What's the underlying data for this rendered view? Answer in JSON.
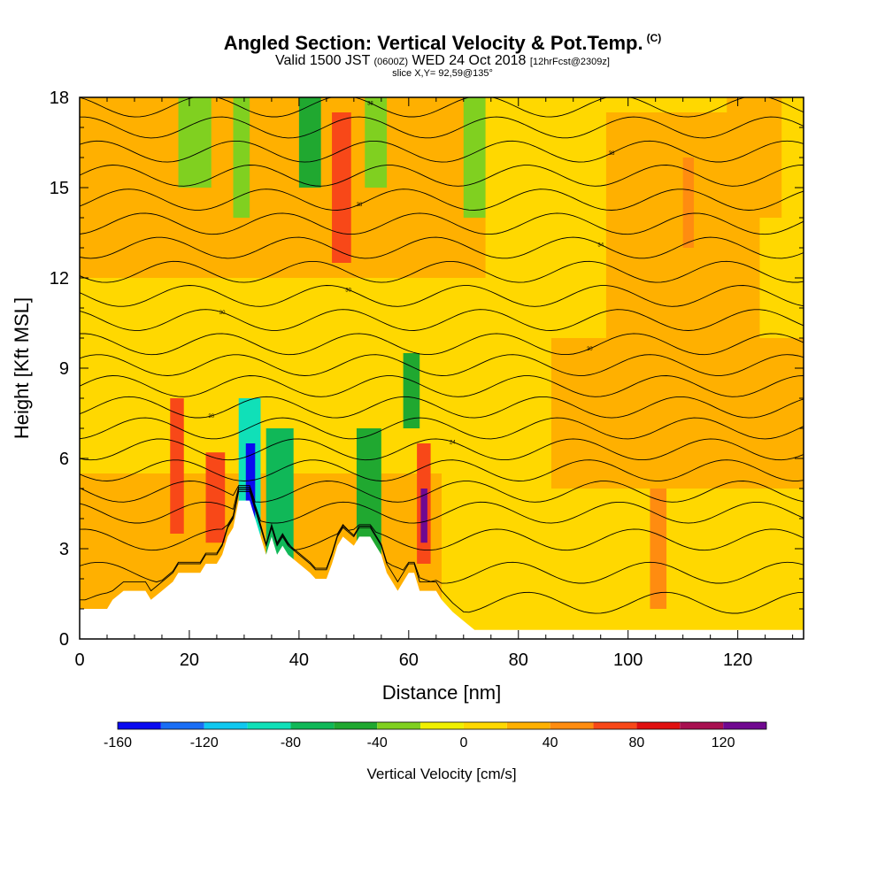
{
  "titles": {
    "main": "Angled Section: Vertical Velocity & Pot.Temp.",
    "main_unit": "(C)",
    "valid_prefix": "Valid 1500 JST",
    "valid_z": "(0600Z)",
    "valid_date": "WED 24 Oct 2018",
    "valid_fcst": "[12hrFcst@2309z]",
    "slice": "slice X,Y= 92,59@135°"
  },
  "chart_data": {
    "type": "heatmap",
    "title": "Angled Section: Vertical Velocity & Pot.Temp. (C)",
    "xlabel": "Distance [nm]",
    "ylabel": "Height [Kft MSL]",
    "xlim": [
      0,
      132
    ],
    "ylim": [
      0,
      18
    ],
    "x_ticks": [
      0,
      20,
      40,
      60,
      80,
      100,
      120
    ],
    "y_ticks": [
      0,
      3,
      6,
      9,
      12,
      15,
      18
    ],
    "colorbar": {
      "title": "Vertical Velocity [cm/s]",
      "levels": [
        -160,
        -140,
        -120,
        -100,
        -80,
        -60,
        -40,
        -20,
        0,
        20,
        40,
        60,
        80,
        100,
        120,
        140
      ],
      "labels": [
        -160,
        -120,
        -80,
        -40,
        0,
        40,
        80,
        120
      ],
      "colors": [
        "#0a0af0",
        "#1a6ef5",
        "#10c8f0",
        "#10e0b8",
        "#10b858",
        "#20a830",
        "#80d020",
        "#f0f000",
        "#ffd800",
        "#ffb000",
        "#ff8c10",
        "#f84818",
        "#e01010",
        "#a81050",
        "#700890"
      ]
    },
    "background_range": [
      0,
      20
    ],
    "cells": [
      {
        "x0": 0,
        "x1": 132,
        "y0": 0,
        "y1": 18,
        "v": 10
      },
      {
        "x0": 0,
        "x1": 132,
        "y0": 0,
        "y1": 5.5,
        "v": 30
      },
      {
        "x0": 66,
        "x1": 132,
        "y0": 0,
        "y1": 18,
        "v": 10
      },
      {
        "x0": 86,
        "x1": 132,
        "y0": 5,
        "y1": 10,
        "v": 30
      },
      {
        "x0": 96,
        "x1": 124,
        "y0": 10,
        "y1": 17.5,
        "v": 30
      },
      {
        "x0": 62,
        "x1": 74,
        "y0": 12,
        "y1": 18,
        "v": 30
      },
      {
        "x0": 118,
        "x1": 128,
        "y0": 14,
        "y1": 18,
        "v": 30
      },
      {
        "x0": 2,
        "x1": 14,
        "y0": 14.5,
        "y1": 18,
        "v": 30
      },
      {
        "x0": 0,
        "x1": 66,
        "y0": 12,
        "y1": 18,
        "v": 30
      },
      {
        "x0": 16.5,
        "x1": 19,
        "y0": 3.5,
        "y1": 8,
        "v": 70
      },
      {
        "x0": 23,
        "x1": 26.5,
        "y0": 3.2,
        "y1": 6.2,
        "v": 70
      },
      {
        "x0": 46,
        "x1": 49.5,
        "y0": 12.5,
        "y1": 17.5,
        "v": 70
      },
      {
        "x0": 61.5,
        "x1": 64,
        "y0": 2.5,
        "y1": 6.5,
        "v": 70
      },
      {
        "x0": 62.2,
        "x1": 63.4,
        "y0": 3.2,
        "y1": 5,
        "v": 130
      },
      {
        "x0": 104,
        "x1": 107,
        "y0": 1,
        "y1": 5,
        "v": 50
      },
      {
        "x0": 110,
        "x1": 112,
        "y0": 13,
        "y1": 16,
        "v": 50
      },
      {
        "x0": 18,
        "x1": 24,
        "y0": 15,
        "y1": 18,
        "v": -30
      },
      {
        "x0": 28,
        "x1": 31,
        "y0": 14,
        "y1": 18,
        "v": -30
      },
      {
        "x0": 40,
        "x1": 44,
        "y0": 15,
        "y1": 18,
        "v": -50
      },
      {
        "x0": 52,
        "x1": 56,
        "y0": 15,
        "y1": 18,
        "v": -30
      },
      {
        "x0": 70,
        "x1": 74,
        "y0": 14,
        "y1": 18,
        "v": -30
      },
      {
        "x0": 59,
        "x1": 62,
        "y0": 7,
        "y1": 9.5,
        "v": -50
      },
      {
        "x0": 29,
        "x1": 33,
        "y0": 2.8,
        "y1": 8,
        "v": -90
      },
      {
        "x0": 30.3,
        "x1": 32,
        "y0": 4,
        "y1": 6.5,
        "v": -150
      },
      {
        "x0": 34,
        "x1": 39,
        "y0": 2.2,
        "y1": 7,
        "v": -70
      },
      {
        "x0": 50.5,
        "x1": 55,
        "y0": 2.5,
        "y1": 7,
        "v": -50
      }
    ],
    "terrain": [
      [
        0,
        1
      ],
      [
        5,
        1
      ],
      [
        6,
        1.3
      ],
      [
        8,
        1.6
      ],
      [
        12,
        1.6
      ],
      [
        13,
        1.3
      ],
      [
        15,
        1.6
      ],
      [
        17,
        1.9
      ],
      [
        18,
        2.2
      ],
      [
        22,
        2.2
      ],
      [
        23,
        2.5
      ],
      [
        25,
        2.5
      ],
      [
        26,
        2.8
      ],
      [
        27,
        3.4
      ],
      [
        28,
        3.7
      ],
      [
        29,
        4.6
      ],
      [
        31,
        4.6
      ],
      [
        32,
        4
      ],
      [
        33,
        3.4
      ],
      [
        34,
        2.8
      ],
      [
        35,
        3.4
      ],
      [
        36,
        2.8
      ],
      [
        37,
        3.1
      ],
      [
        38,
        2.8
      ],
      [
        40,
        2.5
      ],
      [
        42,
        2.2
      ],
      [
        43,
        2
      ],
      [
        45,
        2
      ],
      [
        46,
        2.5
      ],
      [
        47,
        3.1
      ],
      [
        48,
        3.4
      ],
      [
        50,
        3.1
      ],
      [
        51,
        3.4
      ],
      [
        53,
        3.4
      ],
      [
        54,
        3.1
      ],
      [
        55,
        2.8
      ],
      [
        56,
        2.2
      ],
      [
        57,
        1.9
      ],
      [
        58,
        1.6
      ],
      [
        59,
        1.9
      ],
      [
        60,
        2.2
      ],
      [
        61,
        2.2
      ],
      [
        62,
        1.6
      ],
      [
        65,
        1.6
      ],
      [
        66,
        1.3
      ],
      [
        68,
        0.9
      ],
      [
        70,
        0.6
      ],
      [
        72,
        0.3
      ],
      [
        132,
        0.3
      ],
      [
        132,
        0
      ],
      [
        0,
        0
      ]
    ],
    "isentropes": [
      {
        "base": 1.2,
        "label": ""
      },
      {
        "base": 2.2,
        "label": ""
      },
      {
        "base": 3.3,
        "label": ""
      },
      {
        "base": 4.2,
        "label": ""
      },
      {
        "base": 4.9,
        "label": ""
      },
      {
        "base": 5.6,
        "label": ""
      },
      {
        "base": 6.3,
        "label": "24"
      },
      {
        "base": 7.0,
        "label": ""
      },
      {
        "base": 7.7,
        "label": "30"
      },
      {
        "base": 8.4,
        "label": ""
      },
      {
        "base": 9.1,
        "label": ""
      },
      {
        "base": 9.8,
        "label": "30"
      },
      {
        "base": 10.6,
        "label": "30"
      },
      {
        "base": 11.4,
        "label": "30"
      },
      {
        "base": 12.2,
        "label": ""
      },
      {
        "base": 13.0,
        "label": "34"
      },
      {
        "base": 13.8,
        "label": ""
      },
      {
        "base": 14.6,
        "label": "38"
      },
      {
        "base": 15.4,
        "label": ""
      },
      {
        "base": 16.2,
        "label": "38"
      },
      {
        "base": 17.0,
        "label": ""
      },
      {
        "base": 17.7,
        "label": "38"
      }
    ]
  }
}
